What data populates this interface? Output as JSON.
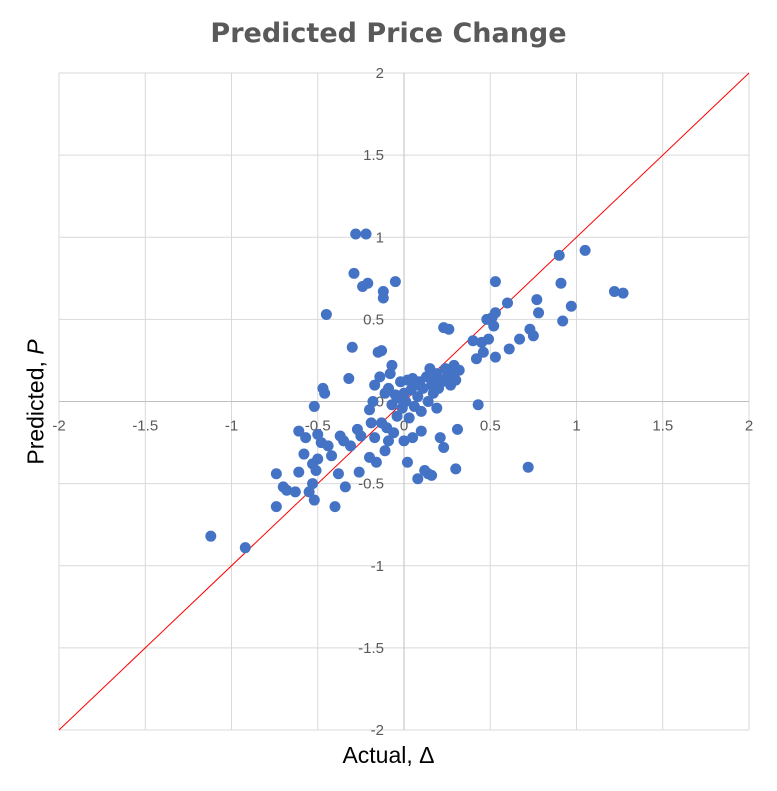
{
  "chart_data": {
    "type": "scatter",
    "title": "Predicted Price Change",
    "xlabel": "Actual, Δ",
    "ylabel_text": "Predicted, ",
    "ylabel_var": "P",
    "xlim": [
      -2,
      2
    ],
    "ylim": [
      -2,
      2
    ],
    "x_ticks": [
      -2,
      -1.5,
      -1,
      -0.5,
      0,
      0.5,
      1,
      1.5,
      2
    ],
    "y_ticks": [
      -2,
      -1.5,
      -1,
      -0.5,
      0,
      0.5,
      1,
      1.5,
      2
    ],
    "grid": true,
    "point_color": "#4472C4",
    "reference_line": {
      "from": [
        -2,
        -2
      ],
      "to": [
        2,
        2
      ],
      "color": "#FF0000"
    },
    "points": [
      [
        -1.12,
        -0.82
      ],
      [
        -0.92,
        -0.89
      ],
      [
        -0.74,
        -0.64
      ],
      [
        -0.74,
        -0.44
      ],
      [
        -0.7,
        -0.52
      ],
      [
        -0.68,
        -0.54
      ],
      [
        -0.63,
        -0.55
      ],
      [
        -0.61,
        -0.43
      ],
      [
        -0.61,
        -0.18
      ],
      [
        -0.58,
        -0.32
      ],
      [
        -0.57,
        -0.22
      ],
      [
        -0.55,
        -0.55
      ],
      [
        -0.53,
        -0.5
      ],
      [
        -0.53,
        -0.38
      ],
      [
        -0.52,
        -0.6
      ],
      [
        -0.52,
        -0.03
      ],
      [
        -0.51,
        -0.42
      ],
      [
        -0.5,
        -0.35
      ],
      [
        -0.5,
        -0.2
      ],
      [
        -0.48,
        -0.25
      ],
      [
        -0.47,
        0.08
      ],
      [
        -0.46,
        0.05
      ],
      [
        -0.45,
        0.53
      ],
      [
        -0.44,
        -0.27
      ],
      [
        -0.42,
        -0.33
      ],
      [
        -0.4,
        -0.64
      ],
      [
        -0.38,
        -0.44
      ],
      [
        -0.37,
        -0.21
      ],
      [
        -0.35,
        -0.24
      ],
      [
        -0.34,
        -0.52
      ],
      [
        -0.32,
        0.14
      ],
      [
        -0.31,
        -0.27
      ],
      [
        -0.3,
        0.33
      ],
      [
        -0.29,
        0.78
      ],
      [
        -0.28,
        1.02
      ],
      [
        -0.27,
        -0.17
      ],
      [
        -0.26,
        -0.43
      ],
      [
        -0.25,
        -0.21
      ],
      [
        -0.24,
        0.7
      ],
      [
        -0.22,
        1.02
      ],
      [
        -0.21,
        0.72
      ],
      [
        -0.2,
        -0.05
      ],
      [
        -0.2,
        -0.34
      ],
      [
        -0.19,
        -0.13
      ],
      [
        -0.18,
        0.0
      ],
      [
        -0.17,
        -0.22
      ],
      [
        -0.17,
        0.1
      ],
      [
        -0.16,
        -0.37
      ],
      [
        -0.15,
        0.3
      ],
      [
        -0.14,
        0.15
      ],
      [
        -0.13,
        -0.13
      ],
      [
        -0.13,
        0.31
      ],
      [
        -0.12,
        0.67
      ],
      [
        -0.12,
        0.63
      ],
      [
        -0.11,
        -0.3
      ],
      [
        -0.11,
        0.05
      ],
      [
        -0.1,
        -0.16
      ],
      [
        -0.09,
        0.08
      ],
      [
        -0.09,
        -0.24
      ],
      [
        -0.08,
        0.17
      ],
      [
        -0.07,
        0.22
      ],
      [
        -0.07,
        -0.02
      ],
      [
        -0.06,
        -0.19
      ],
      [
        -0.05,
        0.73
      ],
      [
        -0.05,
        0.04
      ],
      [
        -0.04,
        -0.09
      ],
      [
        -0.03,
        0.02
      ],
      [
        -0.02,
        0.12
      ],
      [
        -0.01,
        -0.04
      ],
      [
        0.0,
        -0.24
      ],
      [
        0.0,
        0.05
      ],
      [
        0.01,
        0.0
      ],
      [
        0.02,
        -0.37
      ],
      [
        0.02,
        0.13
      ],
      [
        0.03,
        -0.1
      ],
      [
        0.04,
        0.07
      ],
      [
        0.05,
        -0.22
      ],
      [
        0.05,
        0.14
      ],
      [
        0.06,
        -0.03
      ],
      [
        0.07,
        0.1
      ],
      [
        0.08,
        -0.47
      ],
      [
        0.08,
        0.03
      ],
      [
        0.09,
        0.12
      ],
      [
        0.1,
        -0.06
      ],
      [
        0.1,
        -0.18
      ],
      [
        0.11,
        0.08
      ],
      [
        0.12,
        -0.42
      ],
      [
        0.13,
        0.15
      ],
      [
        0.14,
        0.0
      ],
      [
        0.14,
        -0.44
      ],
      [
        0.15,
        0.2
      ],
      [
        0.16,
        0.1
      ],
      [
        0.16,
        -0.45
      ],
      [
        0.17,
        0.05
      ],
      [
        0.18,
        0.13
      ],
      [
        0.19,
        -0.04
      ],
      [
        0.19,
        0.17
      ],
      [
        0.2,
        0.08
      ],
      [
        0.21,
        -0.22
      ],
      [
        0.22,
        0.12
      ],
      [
        0.23,
        -0.28
      ],
      [
        0.23,
        0.45
      ],
      [
        0.24,
        0.2
      ],
      [
        0.25,
        0.15
      ],
      [
        0.26,
        0.44
      ],
      [
        0.27,
        0.1
      ],
      [
        0.28,
        0.16
      ],
      [
        0.29,
        0.22
      ],
      [
        0.3,
        -0.41
      ],
      [
        0.3,
        0.13
      ],
      [
        0.31,
        -0.17
      ],
      [
        0.32,
        0.19
      ],
      [
        0.4,
        0.37
      ],
      [
        0.42,
        0.26
      ],
      [
        0.43,
        -0.02
      ],
      [
        0.45,
        0.36
      ],
      [
        0.46,
        0.3
      ],
      [
        0.48,
        0.5
      ],
      [
        0.49,
        0.38
      ],
      [
        0.51,
        0.51
      ],
      [
        0.52,
        0.46
      ],
      [
        0.53,
        0.27
      ],
      [
        0.53,
        0.54
      ],
      [
        0.53,
        0.73
      ],
      [
        0.6,
        0.6
      ],
      [
        0.61,
        0.32
      ],
      [
        0.67,
        0.38
      ],
      [
        0.72,
        -0.4
      ],
      [
        0.73,
        0.44
      ],
      [
        0.75,
        0.4
      ],
      [
        0.77,
        0.62
      ],
      [
        0.78,
        0.54
      ],
      [
        0.9,
        0.89
      ],
      [
        0.91,
        0.72
      ],
      [
        0.92,
        0.49
      ],
      [
        0.97,
        0.58
      ],
      [
        1.05,
        0.92
      ],
      [
        1.22,
        0.67
      ],
      [
        1.27,
        0.66
      ]
    ]
  }
}
